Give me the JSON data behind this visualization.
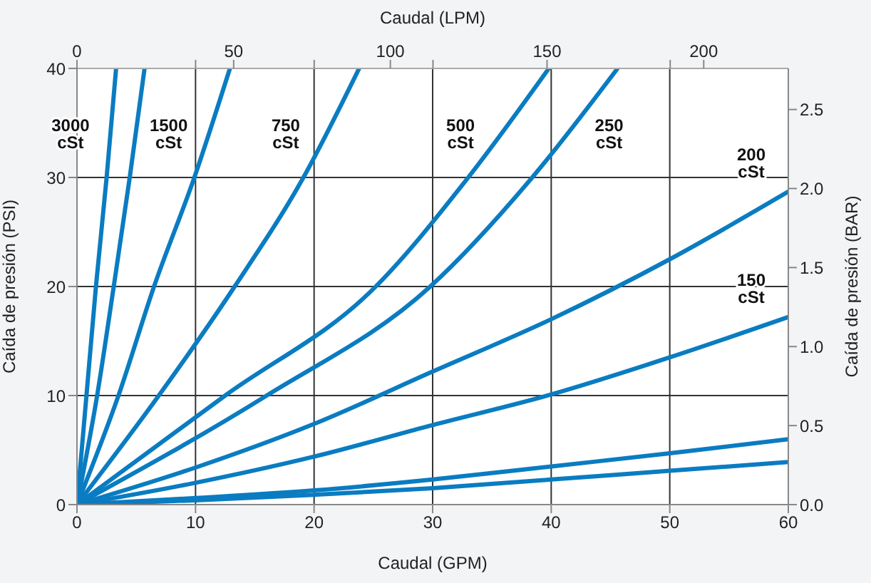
{
  "chart_data": {
    "type": "line",
    "xlabel": "Caudal (GPM)",
    "ylabel": "Caída de presión (PSI)",
    "y2label": "Caída de presión (BAR)",
    "x2label": "Caudal (LPM)",
    "xlim": [
      0,
      60
    ],
    "xticks": [
      0,
      10,
      20,
      30,
      40,
      50,
      60
    ],
    "ylim": [
      0,
      40
    ],
    "yticks": [
      0,
      10,
      20,
      30,
      40
    ],
    "y2lim": [
      0,
      2.76
    ],
    "y2ticks": [
      {
        "value": 0,
        "label": "0.0"
      },
      {
        "value": 0.5,
        "label": "0.5"
      },
      {
        "value": 1,
        "label": "1.0"
      },
      {
        "value": 1.5,
        "label": "1.5"
      },
      {
        "value": 2,
        "label": "2.0"
      },
      {
        "value": 2.5,
        "label": "2.5"
      }
    ],
    "x2lim": [
      0,
      227
    ],
    "x2ticks": [
      0,
      {
        "value": 37.85,
        "label": null
      },
      50,
      {
        "value": 75.7,
        "label": null
      },
      100,
      {
        "value": 113.6,
        "label": null
      },
      150,
      {
        "value": 189.3,
        "label": null
      },
      200
    ],
    "grid": true,
    "legend": false,
    "marker": "none",
    "line_style": "solid",
    "series": [
      {
        "name": "3000 cSt",
        "color": "#0a7cc1",
        "x": [
          0,
          0.8,
          1.6,
          2.5,
          3.3
        ],
        "values": [
          0,
          10,
          20,
          30,
          40
        ]
      },
      {
        "color": "#0a7cc1",
        "x": [
          0,
          1.7,
          3.1,
          4.45,
          5.7
        ],
        "values": [
          0,
          10,
          20,
          30,
          40
        ]
      },
      {
        "name": "1500 cSt",
        "color": "#0a7cc1",
        "x": [
          0,
          3.5,
          6.5,
          9.9,
          12.9
        ],
        "values": [
          0,
          10,
          20,
          30,
          40
        ]
      },
      {
        "name": "750 cSt",
        "color": "#0a7cc1",
        "x": [
          0,
          6.9,
          13.3,
          19.1,
          23.8
        ],
        "values": [
          0,
          10,
          20,
          30,
          40
        ]
      },
      {
        "name": "500 cSt",
        "color": "#0a7cc1",
        "x": [
          0,
          12.5,
          25.2,
          33.0,
          39.8
        ],
        "values": [
          0,
          10,
          20,
          30,
          40
        ]
      },
      {
        "name": "250 cSt",
        "color": "#0a7cc1",
        "x": [
          0,
          16,
          29.8,
          38.4,
          45.6
        ],
        "values": [
          0,
          10,
          20,
          30,
          40
        ]
      },
      {
        "name": "200 cSt",
        "color": "#0a7cc1",
        "x": [
          0,
          10,
          20,
          30,
          40,
          50,
          60
        ],
        "values": [
          0,
          3.4,
          7.4,
          12.2,
          17.0,
          22.5,
          28.7
        ]
      },
      {
        "name": "150 cSt",
        "color": "#0a7cc1",
        "x": [
          0,
          10,
          20,
          30,
          40,
          50,
          60
        ],
        "values": [
          0,
          2.0,
          4.4,
          7.3,
          10.1,
          13.5,
          17.2
        ]
      },
      {
        "color": "#0a7cc1",
        "x": [
          0,
          10,
          20,
          30,
          40,
          50,
          60
        ],
        "values": [
          0,
          0.6,
          1.3,
          2.3,
          3.5,
          4.7,
          6.0
        ]
      },
      {
        "color": "#0a7cc1",
        "x": [
          0,
          10,
          20,
          30,
          40,
          50,
          60
        ],
        "values": [
          0,
          0.4,
          0.9,
          1.5,
          2.3,
          3.1,
          3.9
        ]
      }
    ]
  }
}
